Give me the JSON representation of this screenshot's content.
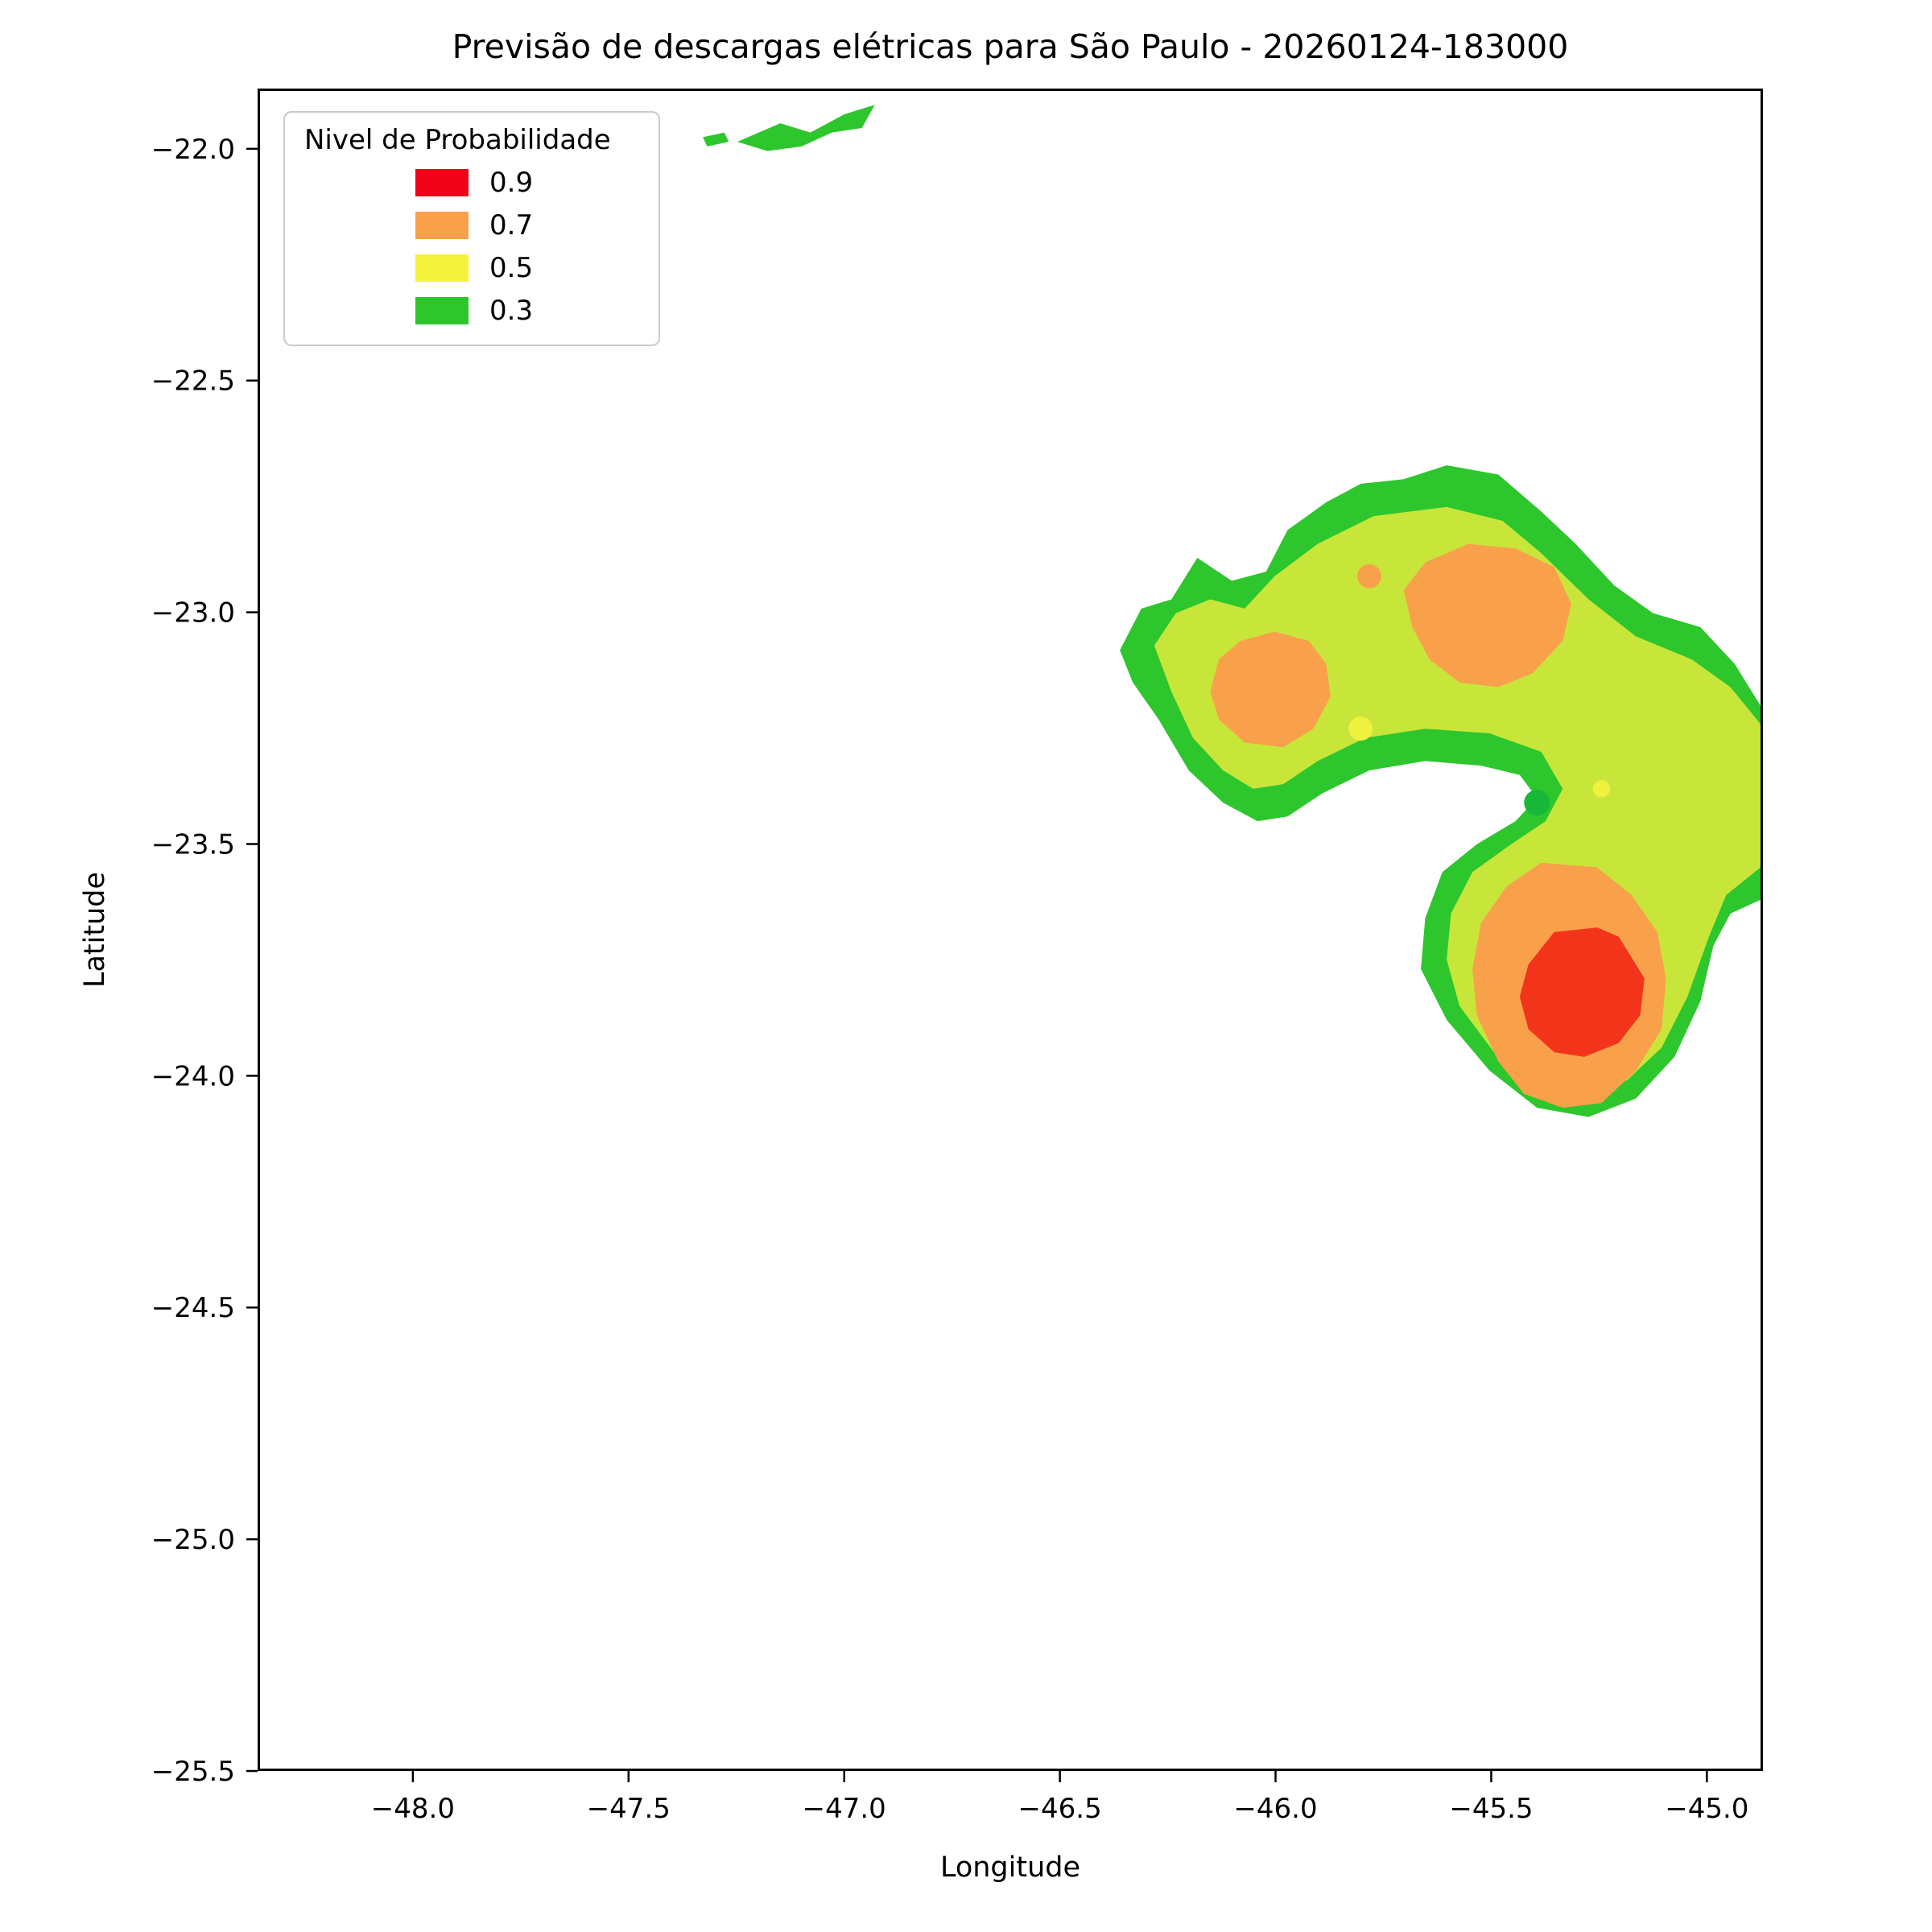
{
  "chart_data": {
    "type": "heatmap",
    "subtype": "filled_contour_map",
    "title": "Previsão de descargas elétricas para São Paulo - 20260124-183000",
    "xlabel": "Longitude",
    "ylabel": "Latitude",
    "xlim": [
      -48.36,
      -44.87
    ],
    "ylim": [
      -25.5,
      -21.87
    ],
    "xticks": [
      -48.0,
      -47.5,
      -47.0,
      -46.5,
      -46.0,
      -45.5,
      -45.0
    ],
    "yticks": [
      -22.0,
      -22.5,
      -23.0,
      -23.5,
      -24.0,
      -24.5,
      -25.0,
      -25.5
    ],
    "grid": false,
    "plot_background": "#ffffff",
    "legend": {
      "title": "Nivel de Probabilidade",
      "position": "upper-left",
      "entries": [
        {
          "label": "0.9",
          "color": "#f00218"
        },
        {
          "label": "0.7",
          "color": "#f8a14a"
        },
        {
          "label": "0.5",
          "color": "#f5f23d"
        },
        {
          "label": "0.3",
          "color": "#2dc62d"
        }
      ]
    },
    "levels": {
      "0.3": "#2dc62d",
      "0.5": "#c8e63a",
      "0.7": "#f8a14a",
      "0.9": "#f2351a"
    },
    "regions": [
      {
        "name": "green-main-blob",
        "level": "0.3",
        "points": [
          [
            -46.36,
            -23.08
          ],
          [
            -46.31,
            -22.99
          ],
          [
            -46.24,
            -22.97
          ],
          [
            -46.18,
            -22.88
          ],
          [
            -46.1,
            -22.93
          ],
          [
            -46.02,
            -22.91
          ],
          [
            -45.97,
            -22.82
          ],
          [
            -45.88,
            -22.76
          ],
          [
            -45.8,
            -22.72
          ],
          [
            -45.7,
            -22.71
          ],
          [
            -45.6,
            -22.68
          ],
          [
            -45.48,
            -22.7
          ],
          [
            -45.38,
            -22.78
          ],
          [
            -45.3,
            -22.85
          ],
          [
            -45.21,
            -22.94
          ],
          [
            -45.12,
            -23.0
          ],
          [
            -45.01,
            -23.03
          ],
          [
            -44.93,
            -23.11
          ],
          [
            -44.87,
            -23.2
          ],
          [
            -44.87,
            -23.62
          ],
          [
            -44.94,
            -23.65
          ],
          [
            -44.98,
            -23.72
          ],
          [
            -45.01,
            -23.84
          ],
          [
            -45.07,
            -23.96
          ],
          [
            -45.16,
            -24.05
          ],
          [
            -45.27,
            -24.09
          ],
          [
            -45.39,
            -24.07
          ],
          [
            -45.5,
            -23.99
          ],
          [
            -45.6,
            -23.88
          ],
          [
            -45.66,
            -23.77
          ],
          [
            -45.65,
            -23.66
          ],
          [
            -45.61,
            -23.56
          ],
          [
            -45.53,
            -23.5
          ],
          [
            -45.44,
            -23.45
          ],
          [
            -45.39,
            -23.4
          ],
          [
            -45.43,
            -23.35
          ],
          [
            -45.52,
            -23.33
          ],
          [
            -45.65,
            -23.32
          ],
          [
            -45.78,
            -23.34
          ],
          [
            -45.89,
            -23.39
          ],
          [
            -45.97,
            -23.44
          ],
          [
            -46.04,
            -23.45
          ],
          [
            -46.12,
            -23.41
          ],
          [
            -46.2,
            -23.34
          ],
          [
            -46.27,
            -23.23
          ],
          [
            -46.33,
            -23.15
          ]
        ]
      },
      {
        "name": "green-sliver-top",
        "level": "0.3",
        "points": [
          [
            -47.25,
            -21.98
          ],
          [
            -47.15,
            -21.94
          ],
          [
            -47.08,
            -21.96
          ],
          [
            -47.0,
            -21.92
          ],
          [
            -46.93,
            -21.9
          ],
          [
            -46.96,
            -21.95
          ],
          [
            -47.03,
            -21.96
          ],
          [
            -47.1,
            -21.99
          ],
          [
            -47.18,
            -22.0
          ]
        ]
      },
      {
        "name": "green-sliver-dash",
        "level": "0.3",
        "points": [
          [
            -47.33,
            -21.97
          ],
          [
            -47.28,
            -21.96
          ],
          [
            -47.27,
            -21.98
          ],
          [
            -47.32,
            -21.99
          ]
        ]
      },
      {
        "name": "yellowgreen-main",
        "level": "0.5",
        "points": [
          [
            -46.28,
            -23.07
          ],
          [
            -46.23,
            -23.0
          ],
          [
            -46.15,
            -22.97
          ],
          [
            -46.07,
            -22.99
          ],
          [
            -46.0,
            -22.92
          ],
          [
            -45.9,
            -22.85
          ],
          [
            -45.77,
            -22.79
          ],
          [
            -45.6,
            -22.77
          ],
          [
            -45.47,
            -22.8
          ],
          [
            -45.38,
            -22.87
          ],
          [
            -45.27,
            -22.97
          ],
          [
            -45.16,
            -23.05
          ],
          [
            -45.03,
            -23.1
          ],
          [
            -44.94,
            -23.16
          ],
          [
            -44.87,
            -23.24
          ],
          [
            -44.87,
            -23.55
          ],
          [
            -44.95,
            -23.61
          ],
          [
            -44.99,
            -23.7
          ],
          [
            -45.04,
            -23.83
          ],
          [
            -45.1,
            -23.94
          ],
          [
            -45.18,
            -24.01
          ],
          [
            -45.28,
            -24.04
          ],
          [
            -45.39,
            -24.02
          ],
          [
            -45.49,
            -23.95
          ],
          [
            -45.57,
            -23.85
          ],
          [
            -45.6,
            -23.75
          ],
          [
            -45.59,
            -23.65
          ],
          [
            -45.54,
            -23.56
          ],
          [
            -45.45,
            -23.5
          ],
          [
            -45.37,
            -23.45
          ],
          [
            -45.33,
            -23.38
          ],
          [
            -45.38,
            -23.3
          ],
          [
            -45.5,
            -23.26
          ],
          [
            -45.65,
            -23.25
          ],
          [
            -45.79,
            -23.27
          ],
          [
            -45.9,
            -23.32
          ],
          [
            -45.98,
            -23.37
          ],
          [
            -46.05,
            -23.38
          ],
          [
            -46.12,
            -23.34
          ],
          [
            -46.19,
            -23.27
          ],
          [
            -46.24,
            -23.17
          ]
        ]
      },
      {
        "name": "orange-upper-blob",
        "level": "0.7",
        "points": [
          [
            -45.65,
            -22.89
          ],
          [
            -45.55,
            -22.85
          ],
          [
            -45.44,
            -22.86
          ],
          [
            -45.35,
            -22.9
          ],
          [
            -45.31,
            -22.98
          ],
          [
            -45.33,
            -23.06
          ],
          [
            -45.4,
            -23.13
          ],
          [
            -45.48,
            -23.16
          ],
          [
            -45.57,
            -23.15
          ],
          [
            -45.64,
            -23.1
          ],
          [
            -45.68,
            -23.03
          ],
          [
            -45.7,
            -22.95
          ]
        ]
      },
      {
        "name": "orange-left-blob",
        "level": "0.7",
        "points": [
          [
            -46.08,
            -23.06
          ],
          [
            -46.0,
            -23.04
          ],
          [
            -45.92,
            -23.06
          ],
          [
            -45.88,
            -23.11
          ],
          [
            -45.87,
            -23.18
          ],
          [
            -45.91,
            -23.25
          ],
          [
            -45.98,
            -23.29
          ],
          [
            -46.07,
            -23.28
          ],
          [
            -46.13,
            -23.23
          ],
          [
            -46.15,
            -23.17
          ],
          [
            -46.13,
            -23.1
          ]
        ]
      },
      {
        "name": "orange-lower-ring",
        "level": "0.7",
        "points": [
          [
            -45.38,
            -23.54
          ],
          [
            -45.25,
            -23.55
          ],
          [
            -45.17,
            -23.61
          ],
          [
            -45.11,
            -23.69
          ],
          [
            -45.09,
            -23.79
          ],
          [
            -45.1,
            -23.9
          ],
          [
            -45.16,
            -23.99
          ],
          [
            -45.24,
            -24.06
          ],
          [
            -45.33,
            -24.07
          ],
          [
            -45.42,
            -24.04
          ],
          [
            -45.48,
            -23.97
          ],
          [
            -45.53,
            -23.87
          ],
          [
            -45.54,
            -23.77
          ],
          [
            -45.52,
            -23.67
          ],
          [
            -45.46,
            -23.59
          ]
        ]
      },
      {
        "name": "red-core",
        "level": "0.9",
        "points": [
          [
            -45.35,
            -23.69
          ],
          [
            -45.25,
            -23.68
          ],
          [
            -45.2,
            -23.7
          ],
          [
            -45.18,
            -23.73
          ],
          [
            -45.14,
            -23.79
          ],
          [
            -45.15,
            -23.87
          ],
          [
            -45.2,
            -23.93
          ],
          [
            -45.28,
            -23.96
          ],
          [
            -45.35,
            -23.95
          ],
          [
            -45.41,
            -23.9
          ],
          [
            -45.43,
            -23.83
          ],
          [
            -45.41,
            -23.76
          ]
        ]
      }
    ],
    "dots": [
      {
        "name": "orange-speck",
        "center": [
          -45.78,
          -22.92
        ],
        "r_deg": 0.028,
        "color": "#f8a14a"
      },
      {
        "name": "yellow-speck-left",
        "center": [
          -45.8,
          -23.25
        ],
        "r_deg": 0.028,
        "color": "#eef23e"
      },
      {
        "name": "yellow-speck-right",
        "center": [
          -45.24,
          -23.38
        ],
        "r_deg": 0.02,
        "color": "#eef23e"
      },
      {
        "name": "green-speck-notch",
        "center": [
          -45.39,
          -23.41
        ],
        "r_deg": 0.03,
        "color": "#17b837"
      }
    ]
  }
}
